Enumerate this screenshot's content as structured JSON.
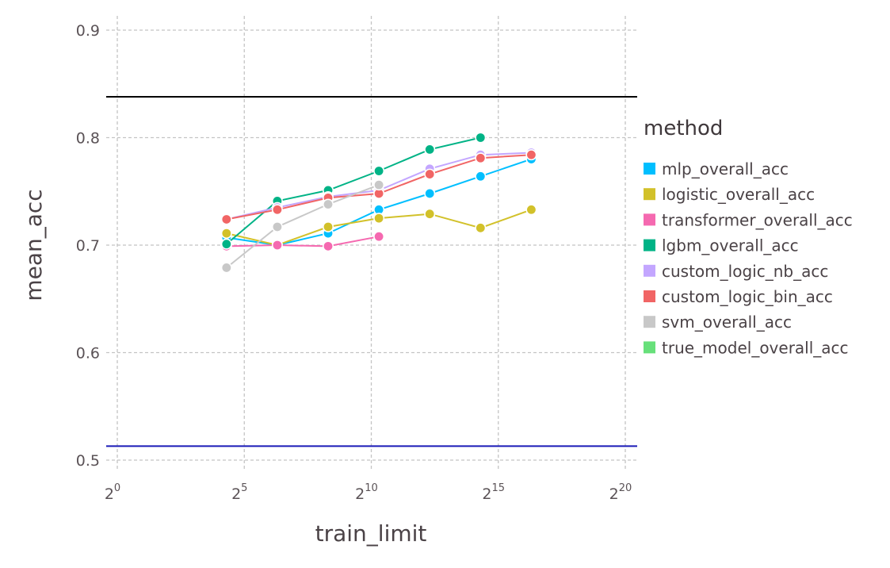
{
  "chart_data": {
    "type": "line",
    "xlabel": "train_limit",
    "ylabel": "mean_acc",
    "x_scale": "log2",
    "xlim": [
      -0.3,
      20
    ],
    "ylim": [
      0.49,
      0.92
    ],
    "grid": true,
    "x_ticks": [
      {
        "base": "2",
        "exp": "0",
        "value": 0
      },
      {
        "base": "2",
        "exp": "5",
        "value": 5
      },
      {
        "base": "2",
        "exp": "10",
        "value": 10
      },
      {
        "base": "2",
        "exp": "15",
        "value": 15
      },
      {
        "base": "2",
        "exp": "20",
        "value": 20
      }
    ],
    "y_ticks": [
      "0.5",
      "0.6",
      "0.7",
      "0.8",
      "0.9"
    ],
    "reference_lines": [
      {
        "y": 0.838,
        "color": "#000000"
      },
      {
        "y": 0.513,
        "color": "#1a1ab8"
      }
    ],
    "legend": {
      "title": "method",
      "position": "right"
    },
    "series": [
      {
        "name": "mlp_overall_acc",
        "color": "#00bfff",
        "x": [
          4.3,
          6.3,
          8.3,
          10.3,
          12.3,
          14.3,
          16.3
        ],
        "y": [
          0.707,
          0.7,
          0.711,
          0.733,
          0.748,
          0.764,
          0.78
        ]
      },
      {
        "name": "logistic_overall_acc",
        "color": "#d2c12a",
        "x": [
          4.3,
          6.3,
          8.3,
          10.3,
          12.3,
          14.3,
          16.3
        ],
        "y": [
          0.711,
          0.7,
          0.717,
          0.725,
          0.729,
          0.716,
          0.733
        ]
      },
      {
        "name": "transformer_overall_acc",
        "color": "#f569b0",
        "x": [
          4.3,
          6.3,
          8.3,
          10.3
        ],
        "y": [
          0.699,
          0.7,
          0.699,
          0.708
        ]
      },
      {
        "name": "lgbm_overall_acc",
        "color": "#00b386",
        "x": [
          4.3,
          6.3,
          8.3,
          10.3,
          12.3,
          14.3
        ],
        "y": [
          0.701,
          0.741,
          0.751,
          0.769,
          0.789,
          0.8
        ]
      },
      {
        "name": "custom_logic_nb_acc",
        "color": "#c3a6ff",
        "x": [
          4.3,
          6.3,
          8.3,
          10.3,
          12.3,
          14.3,
          16.3
        ],
        "y": [
          0.724,
          0.735,
          0.745,
          0.751,
          0.771,
          0.784,
          0.786
        ]
      },
      {
        "name": "custom_logic_bin_acc",
        "color": "#f16565",
        "x": [
          4.3,
          6.3,
          8.3,
          10.3,
          12.3,
          14.3,
          16.3
        ],
        "y": [
          0.724,
          0.733,
          0.744,
          0.748,
          0.766,
          0.781,
          0.784
        ]
      },
      {
        "name": "svm_overall_acc",
        "color": "#c8c8c8",
        "x": [
          4.3,
          6.3,
          8.3,
          10.3
        ],
        "y": [
          0.679,
          0.717,
          0.738,
          0.756
        ]
      },
      {
        "name": "true_model_overall_acc",
        "color": "#67e07a",
        "x": [],
        "y": []
      }
    ]
  }
}
